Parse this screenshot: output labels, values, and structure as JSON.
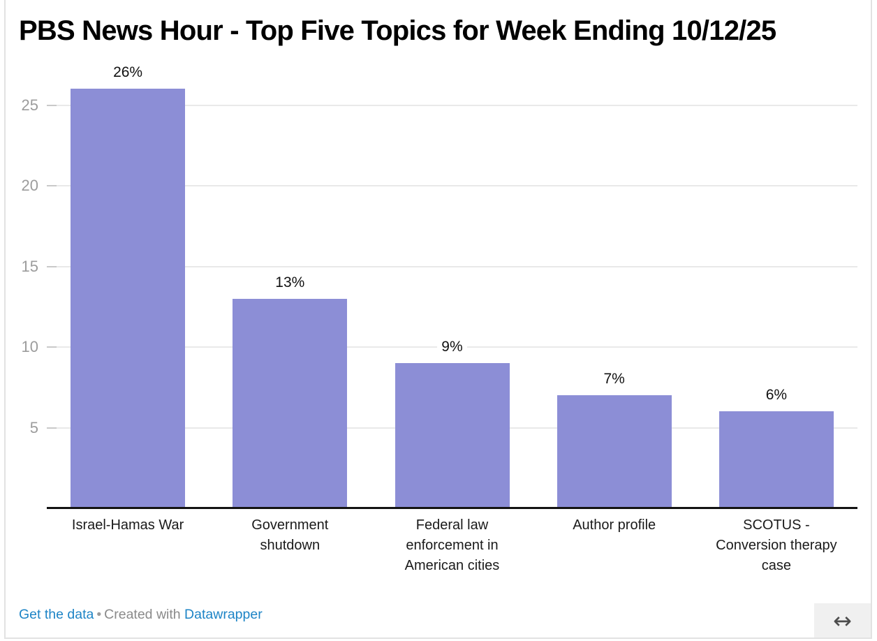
{
  "title": "PBS News Hour - Top Five Topics for Week Ending 10/12/25",
  "chart_data": {
    "type": "bar",
    "title": "PBS News Hour - Top Five Topics for Week Ending 10/12/25",
    "categories": [
      "Israel-Hamas War",
      "Government shutdown",
      "Federal law enforcement in American cities",
      "Author profile",
      "SCOTUS - Conversion therapy case"
    ],
    "categories_wrapped": [
      "Israel-Hamas War",
      "Government\nshutdown",
      "Federal law\nenforcement in\nAmerican cities",
      "Author profile",
      "SCOTUS -\nConversion therapy\ncase"
    ],
    "values": [
      26,
      13,
      9,
      7,
      6
    ],
    "value_labels": [
      "26%",
      "13%",
      "9%",
      "7%",
      "6%"
    ],
    "unit": "%",
    "xlabel": "",
    "ylabel": "",
    "ylim": [
      0,
      26
    ],
    "yticks": [
      5,
      10,
      15,
      20,
      25
    ],
    "grid": "horizontal",
    "legend": "none",
    "bar_color": "#8c8ed6"
  },
  "footer": {
    "get_data_label": "Get the data",
    "separator": "•",
    "created_with": "Created with",
    "brand": "Datawrapper"
  },
  "icons": {
    "resize_arrow": "↔"
  },
  "colors": {
    "bar": "#8c8ed6",
    "link": "#1d84c6",
    "muted_text": "#8a8a8a",
    "tick_label": "#9c9c9c",
    "gridline": "#e9e9e9",
    "tick_dash": "#c9c9c9",
    "axis_line": "#131313",
    "value_label": "#111111",
    "category_label": "#1a1a1a",
    "border": "#e2e2e2",
    "handle_bg": "#f0f0f0",
    "handle_arrow": "#4d4d4d"
  }
}
